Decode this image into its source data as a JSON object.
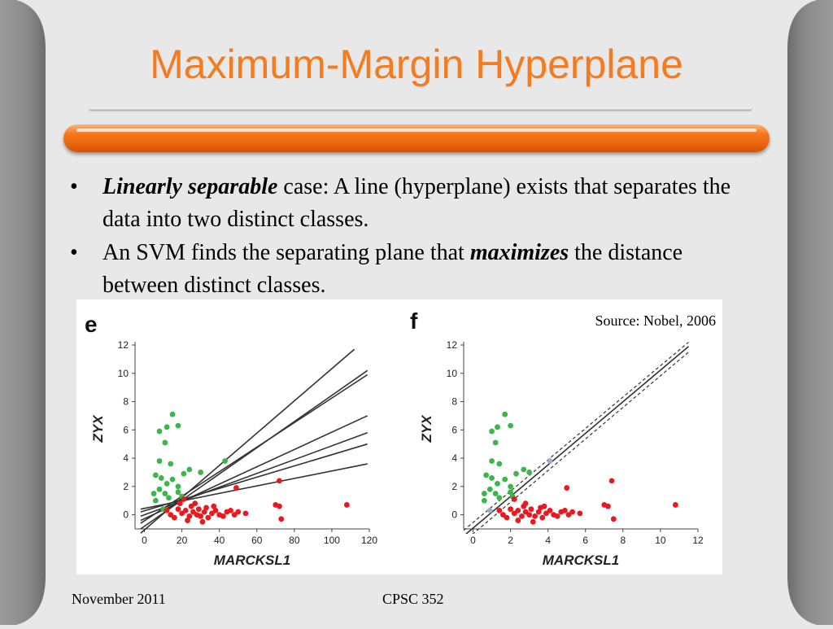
{
  "slide": {
    "title": "Maximum-Margin Hyperplane",
    "bullets": [
      {
        "emph": "Linearly separable",
        "before": "",
        "after": " case: A line (hyperplane) exists that separates the data into two distinct classes."
      },
      {
        "emph": "maximizes",
        "before": "An SVM finds the separating plane that ",
        "after": " the distance between distinct classes."
      }
    ],
    "source": "Source: Nobel, 2006",
    "footer_left": "November 2011",
    "footer_center": "CPSC 352",
    "colors": {
      "accent": "#f47b20",
      "green_points": "#3cb54a",
      "red_points": "#e8191f"
    }
  },
  "chart_data": [
    {
      "type": "scatter",
      "panel_label": "e",
      "xlabel": "MARCKSL1",
      "ylabel": "ZYX",
      "xlim": [
        -5,
        120
      ],
      "ylim": [
        -1,
        12
      ],
      "xticks": [
        0,
        20,
        40,
        60,
        80,
        100,
        120
      ],
      "yticks": [
        0,
        2,
        4,
        6,
        8,
        10,
        12
      ],
      "series": [
        {
          "color": "#3cb54a",
          "points": [
            [
              8,
              5.9
            ],
            [
              12,
              6.2
            ],
            [
              15,
              7.1
            ],
            [
              18,
              6.3
            ],
            [
              11,
              5.1
            ],
            [
              8,
              3.8
            ],
            [
              6,
              2.8
            ],
            [
              9,
              2.6
            ],
            [
              12,
              2.2
            ],
            [
              15,
              2.5
            ],
            [
              18,
              2.0
            ],
            [
              21,
              2.9
            ],
            [
              24,
              3.2
            ],
            [
              30,
              3.0
            ],
            [
              20,
              1.3
            ],
            [
              13,
              1.2
            ],
            [
              8,
              1.8
            ],
            [
              6,
              1.0
            ],
            [
              10,
              0.4
            ],
            [
              14,
              3.6
            ],
            [
              18,
              1.6
            ],
            [
              43,
              3.8
            ],
            [
              5,
              1.5
            ],
            [
              11,
              1.5
            ]
          ]
        },
        {
          "color": "#e8191f",
          "points": [
            [
              12,
              0.3
            ],
            [
              14,
              0.0
            ],
            [
              16,
              -0.2
            ],
            [
              18,
              0.4
            ],
            [
              20,
              0.1
            ],
            [
              22,
              0.3
            ],
            [
              24,
              -0.1
            ],
            [
              25,
              0.6
            ],
            [
              26,
              0.2
            ],
            [
              28,
              0.0
            ],
            [
              29,
              0.4
            ],
            [
              30,
              -0.1
            ],
            [
              32,
              0.2
            ],
            [
              33,
              0.5
            ],
            [
              34,
              -0.2
            ],
            [
              36,
              0.1
            ],
            [
              38,
              0.3
            ],
            [
              40,
              0.0
            ],
            [
              42,
              -0.1
            ],
            [
              44,
              0.2
            ],
            [
              46,
              0.3
            ],
            [
              48,
              0.0
            ],
            [
              50,
              0.2
            ],
            [
              54,
              0.1
            ],
            [
              49,
              1.9
            ],
            [
              70,
              0.7
            ],
            [
              72,
              2.4
            ],
            [
              73,
              -0.3
            ],
            [
              72,
              0.6
            ],
            [
              108,
              0.7
            ],
            [
              21,
              1.1
            ],
            [
              27,
              0.8
            ],
            [
              37,
              0.6
            ],
            [
              23,
              -0.4
            ],
            [
              31,
              -0.5
            ],
            [
              19,
              0.8
            ]
          ]
        }
      ],
      "lines": [
        {
          "x": [
            -2,
            112
          ],
          "y": [
            -1.3,
            11.7
          ]
        },
        {
          "x": [
            -2,
            119
          ],
          "y": [
            -1.0,
            10.2
          ]
        },
        {
          "x": [
            -2,
            119
          ],
          "y": [
            -0.6,
            9.9
          ]
        },
        {
          "x": [
            -2,
            119
          ],
          "y": [
            -0.4,
            7.0
          ]
        },
        {
          "x": [
            -2,
            119
          ],
          "y": [
            -0.1,
            5.8
          ]
        },
        {
          "x": [
            -2,
            119
          ],
          "y": [
            0.2,
            5.0
          ]
        },
        {
          "x": [
            -2,
            119
          ],
          "y": [
            0.4,
            3.6
          ]
        }
      ]
    },
    {
      "type": "scatter",
      "panel_label": "f",
      "xlabel": "MARCKSL1",
      "ylabel": "ZYX",
      "xlim": [
        -0.5,
        12
      ],
      "ylim": [
        -1,
        12
      ],
      "xticks": [
        0,
        2,
        4,
        6,
        8,
        10,
        12
      ],
      "yticks": [
        0,
        2,
        4,
        6,
        8,
        10,
        12
      ],
      "series": [
        {
          "color": "#3cb54a",
          "points": [
            [
              1.0,
              5.9
            ],
            [
              1.3,
              6.2
            ],
            [
              1.7,
              7.1
            ],
            [
              2.0,
              6.3
            ],
            [
              1.2,
              5.1
            ],
            [
              1.0,
              3.8
            ],
            [
              0.7,
              2.8
            ],
            [
              1.0,
              2.6
            ],
            [
              1.3,
              2.2
            ],
            [
              1.7,
              2.5
            ],
            [
              2.0,
              2.0
            ],
            [
              2.3,
              2.9
            ],
            [
              2.7,
              3.2
            ],
            [
              3.0,
              3.0
            ],
            [
              2.1,
              1.3
            ],
            [
              1.4,
              1.2
            ],
            [
              0.9,
              1.8
            ],
            [
              0.6,
              1.0
            ],
            [
              1.4,
              3.6
            ],
            [
              2.0,
              1.6
            ],
            [
              0.6,
              1.5
            ],
            [
              1.2,
              1.5
            ]
          ]
        },
        {
          "color": "#e8191f",
          "points": [
            [
              1.4,
              0.3
            ],
            [
              1.6,
              0.0
            ],
            [
              1.8,
              -0.2
            ],
            [
              2.0,
              0.4
            ],
            [
              2.2,
              0.1
            ],
            [
              2.4,
              0.3
            ],
            [
              2.6,
              -0.1
            ],
            [
              2.7,
              0.6
            ],
            [
              2.8,
              0.2
            ],
            [
              3.0,
              0.0
            ],
            [
              3.1,
              0.4
            ],
            [
              3.3,
              -0.1
            ],
            [
              3.5,
              0.2
            ],
            [
              3.6,
              0.5
            ],
            [
              3.7,
              -0.2
            ],
            [
              3.9,
              0.1
            ],
            [
              4.1,
              0.3
            ],
            [
              4.3,
              0.0
            ],
            [
              4.5,
              -0.1
            ],
            [
              4.7,
              0.2
            ],
            [
              4.9,
              0.3
            ],
            [
              5.1,
              0.0
            ],
            [
              5.3,
              0.2
            ],
            [
              5.7,
              0.1
            ],
            [
              5.0,
              1.9
            ],
            [
              7.0,
              0.7
            ],
            [
              7.4,
              2.4
            ],
            [
              7.5,
              -0.3
            ],
            [
              7.2,
              0.6
            ],
            [
              10.8,
              0.7
            ],
            [
              2.2,
              1.1
            ],
            [
              2.8,
              0.8
            ],
            [
              3.8,
              0.6
            ],
            [
              2.4,
              -0.4
            ],
            [
              3.2,
              -0.5
            ]
          ]
        },
        {
          "color": "#9bb0c8",
          "points": [
            [
              4.1,
              3.8
            ],
            [
              0.9,
              0.3
            ]
          ]
        }
      ],
      "lines": [
        {
          "x": [
            -0.5,
            11.5
          ],
          "y": [
            -1.5,
            11.9
          ],
          "style": "solid"
        },
        {
          "x": [
            -0.5,
            11.5
          ],
          "y": [
            -1.1,
            12.2
          ],
          "style": "dashed"
        },
        {
          "x": [
            -0.5,
            11.5
          ],
          "y": [
            -1.9,
            11.5
          ],
          "style": "dashed"
        }
      ]
    }
  ]
}
